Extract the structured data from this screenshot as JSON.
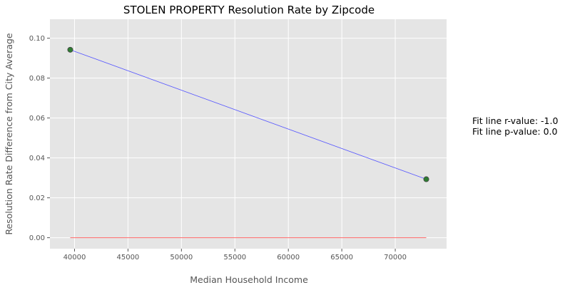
{
  "chart_data": {
    "type": "scatter",
    "title": "STOLEN PROPERTY Resolution Rate by Zipcode",
    "xlabel": "Median Household Income",
    "ylabel": "Resolution Rate Difference from City Average",
    "xlim": [
      37700,
      74800
    ],
    "ylim": [
      -0.0055,
      0.1095
    ],
    "x_ticks": [
      40000,
      45000,
      50000,
      55000,
      60000,
      65000,
      70000
    ],
    "y_ticks": [
      0.0,
      0.02,
      0.04,
      0.06,
      0.08,
      0.1
    ],
    "x_tick_labels": [
      "40000",
      "45000",
      "50000",
      "55000",
      "60000",
      "65000",
      "70000"
    ],
    "y_tick_labels": [
      "0.00",
      "0.02",
      "0.04",
      "0.06",
      "0.08",
      "0.10"
    ],
    "grid": true,
    "points": [
      {
        "x": 39600,
        "y": 0.0942
      },
      {
        "x": 72900,
        "y": 0.0293
      }
    ],
    "fit_line": {
      "x": [
        39600,
        72900
      ],
      "y": [
        0.0942,
        0.0293
      ]
    },
    "zero_line": {
      "x": [
        39600,
        72900
      ],
      "y": [
        0.0,
        0.0
      ]
    },
    "colors": {
      "plot_background": "#e5e5e5",
      "grid": "#ffffff",
      "point_fill": "#2e7d32",
      "point_edge": "#444444",
      "fit_line": "#5555ff",
      "zero_line": "#ff6666"
    }
  },
  "annotation": {
    "r_value": "Fit line r-value: -1.0",
    "p_value": "Fit line p-value: 0.0"
  }
}
